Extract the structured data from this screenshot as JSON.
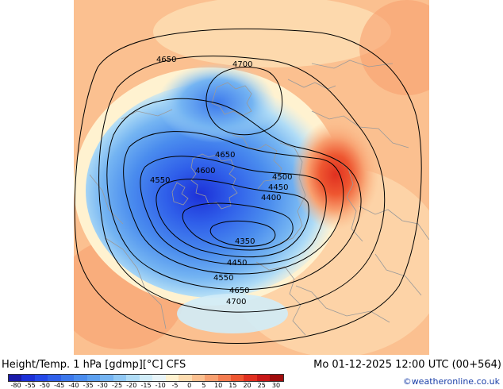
{
  "title": "Height/Temp. 1 hPa [gdmp][°C] CFS",
  "valid_time": "Mo 01-12-2025 12:00 UTC (00+564)",
  "credit": "©weatheronline.co.uk",
  "contour_labels": [
    "4650",
    "4700",
    "4650",
    "4600",
    "4550",
    "4500",
    "4450",
    "4400",
    "4350",
    "4450",
    "4550",
    "4650",
    "4700"
  ],
  "colorbar": {
    "ticks": [
      "-80",
      "-55",
      "-50",
      "-45",
      "-40",
      "-35",
      "-30",
      "-25",
      "-20",
      "-15",
      "-10",
      "-5",
      "0",
      "5",
      "10",
      "15",
      "20",
      "25",
      "30"
    ],
    "colors": [
      "#1a1aa8",
      "#1c30d8",
      "#2448e8",
      "#3060ea",
      "#3c78ec",
      "#4a8cee",
      "#5ca0f0",
      "#74b4f2",
      "#90c8f4",
      "#b0dcf6",
      "#d0ecf8",
      "#e8f4f8",
      "#fff2d0",
      "#fddcb0",
      "#fbc090",
      "#f8a070",
      "#f47c50",
      "#ee5630",
      "#e03020",
      "#c81818",
      "#a00c0c"
    ]
  }
}
